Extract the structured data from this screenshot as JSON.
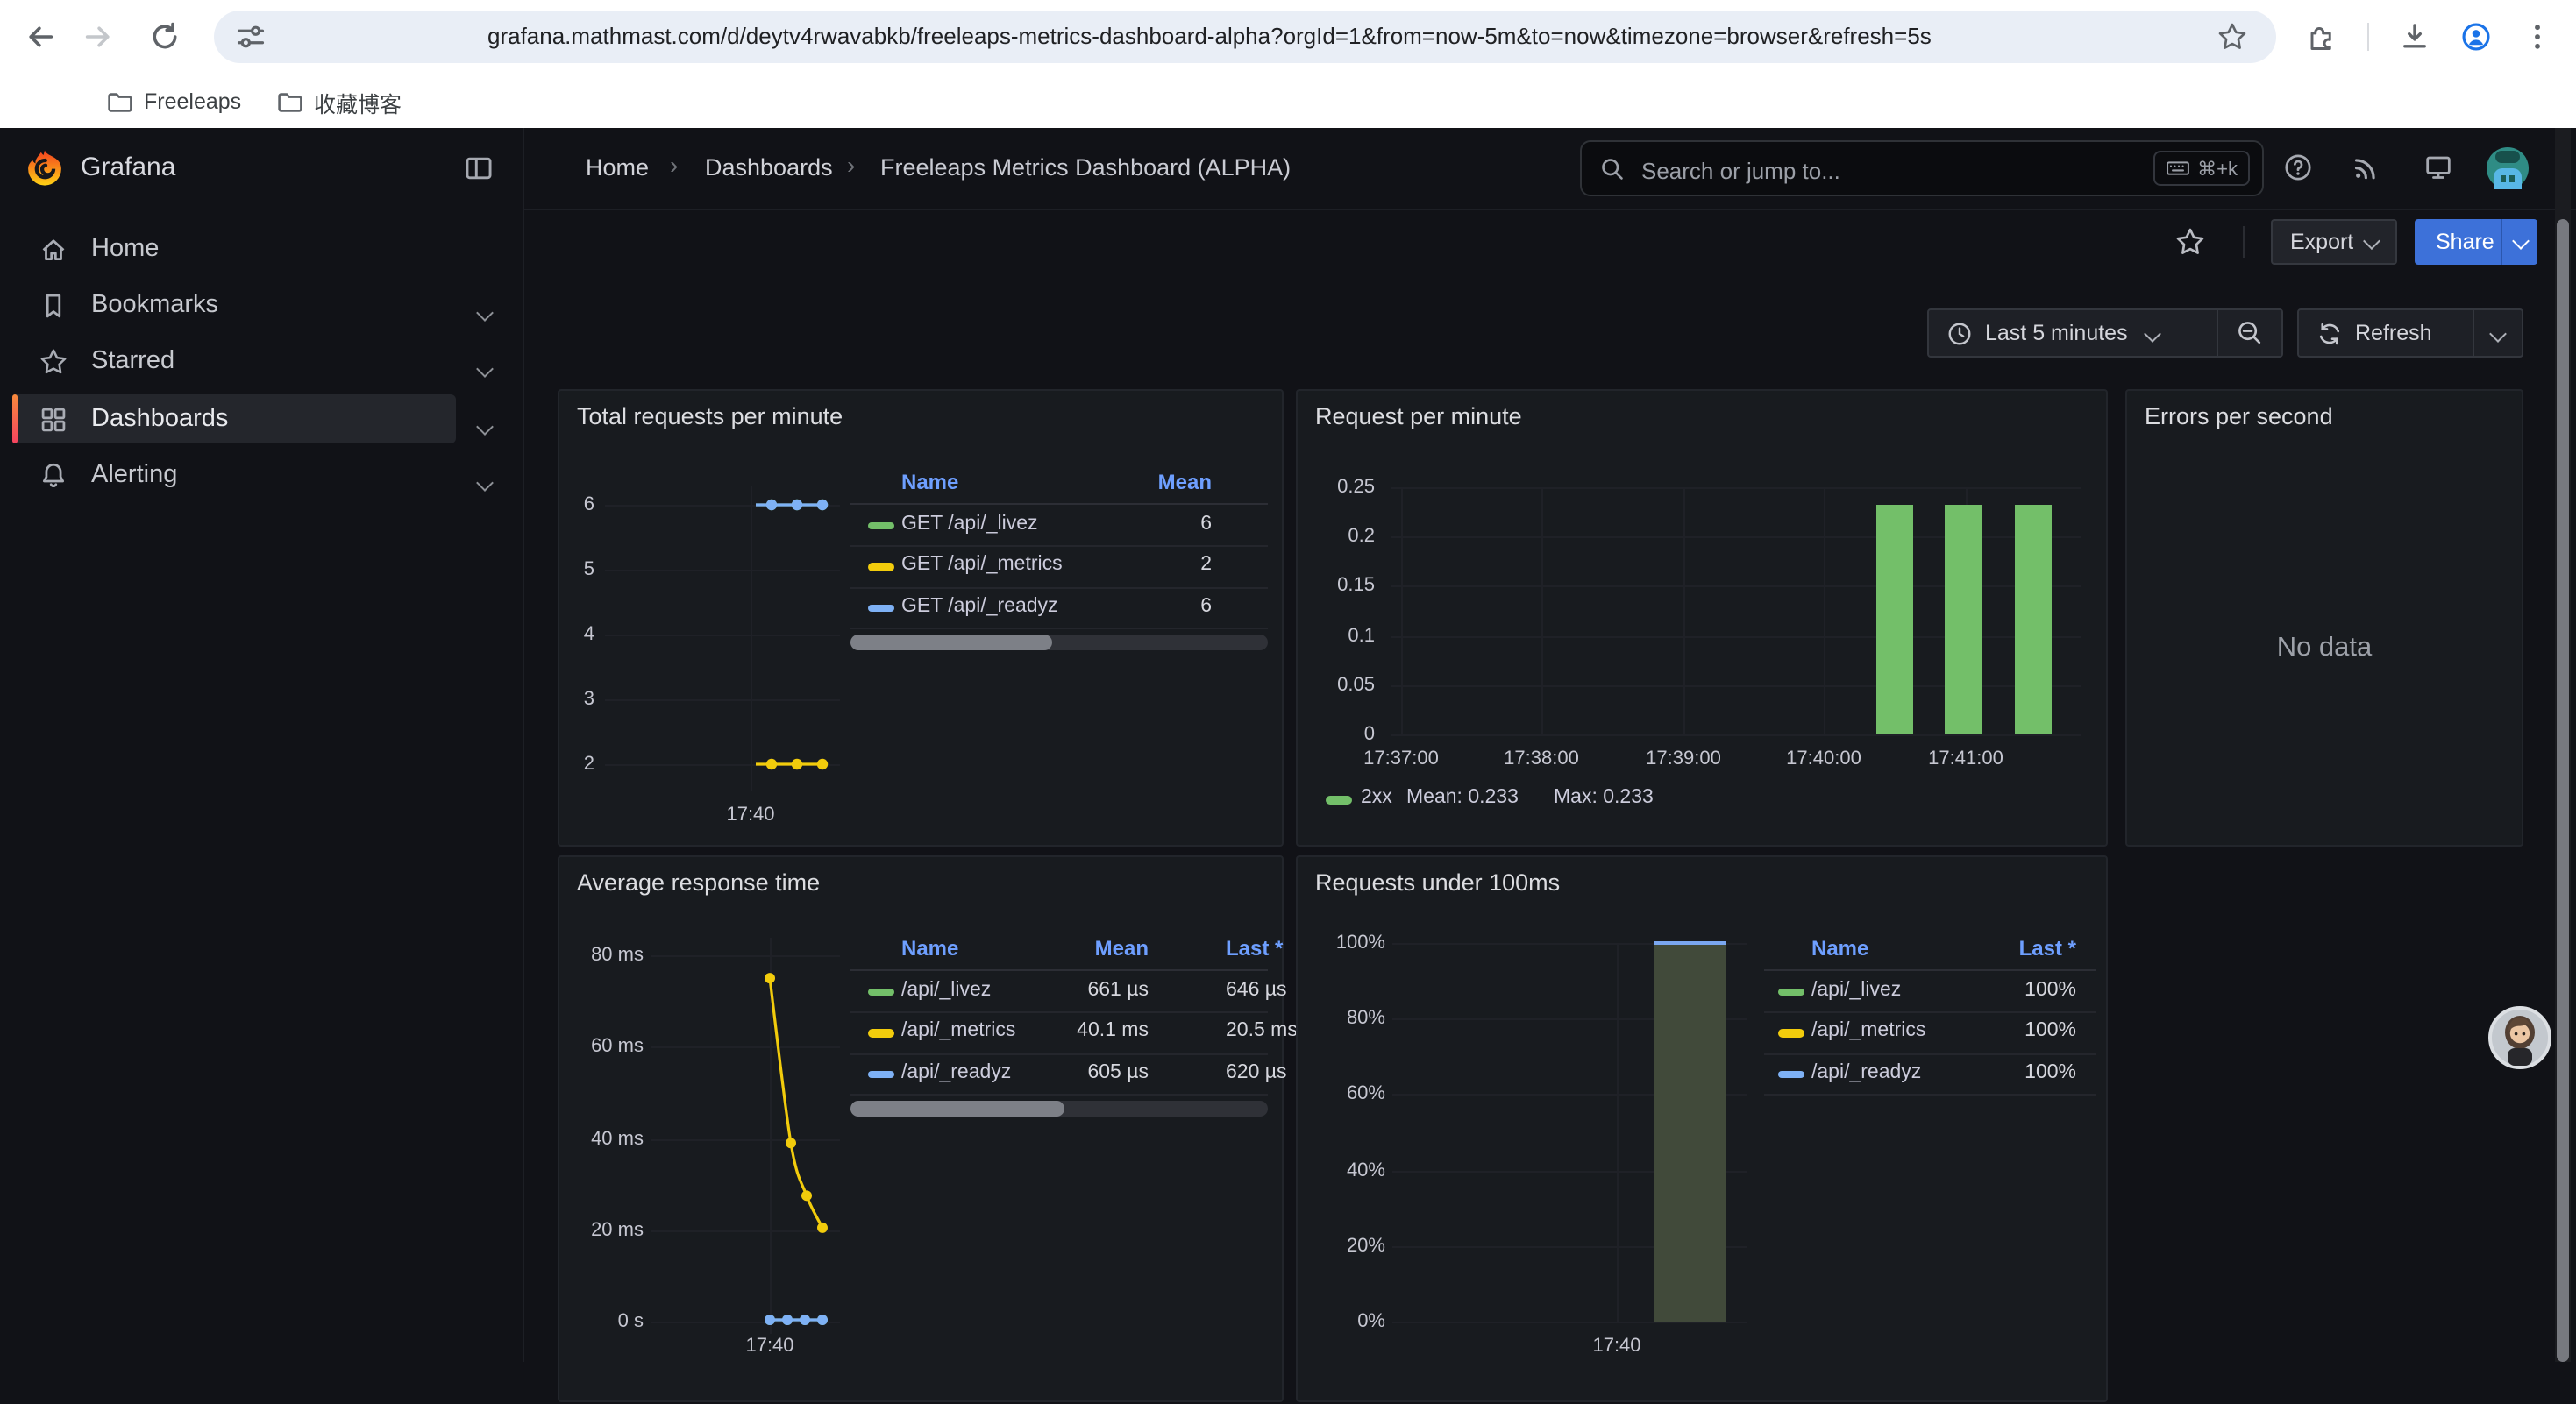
{
  "browser": {
    "url": "grafana.mathmast.com/d/deytv4rwavabkb/freeleaps-metrics-dashboard-alpha?orgId=1&from=now-5m&to=now&timezone=browser&refresh=5s",
    "bookmarks": [
      "Freeleaps",
      "收藏博客"
    ]
  },
  "topnav": {
    "brand": "Grafana",
    "breadcrumb": [
      "Home",
      "Dashboards",
      "Freeleaps Metrics Dashboard (ALPHA)"
    ],
    "search": {
      "placeholder": "Search or jump to...",
      "shortcut": "⌘+k"
    }
  },
  "sidebar": {
    "items": [
      "Home",
      "Bookmarks",
      "Starred",
      "Dashboards",
      "Alerting"
    ],
    "active_item": "Dashboards"
  },
  "dashboard_toolbar": {
    "export": "Export",
    "share": "Share",
    "time_range": "Last 5 minutes",
    "refresh": "Refresh"
  },
  "colors": {
    "green": "#73BF69",
    "yellow": "#F2CC0C",
    "blue": "#7EB1F5",
    "share_blue": "#3d71d9",
    "link_blue": "#6e9fff",
    "bar_fill_olive": "#414a3a",
    "bar_top_blue": "#7aa7f0"
  },
  "chart_data": [
    {
      "panel_title": "Total requests per minute",
      "type": "line",
      "x_ticks": [
        "17:40"
      ],
      "y_ticks": [
        6,
        5,
        4,
        3,
        2
      ],
      "ylim": [
        2,
        6
      ],
      "series": [
        {
          "name": "GET /api/_livez",
          "color": "#73BF69",
          "values": [
            6,
            6,
            6
          ],
          "mean": "6"
        },
        {
          "name": "GET /api/_metrics",
          "color": "#F2CC0C",
          "values": [
            2,
            2,
            2
          ],
          "mean": "2"
        },
        {
          "name": "GET /api/_readyz",
          "color": "#7EB1F5",
          "values": [
            6,
            6,
            6
          ],
          "mean": "6"
        }
      ],
      "legend": {
        "columns": [
          "Name",
          "Mean"
        ]
      }
    },
    {
      "panel_title": "Request per minute",
      "type": "bar",
      "x_ticks": [
        "17:37:00",
        "17:38:00",
        "17:39:00",
        "17:40:00",
        "17:41:00"
      ],
      "y_ticks": [
        "0.25",
        "0.2",
        "0.15",
        "0.1",
        "0.05",
        "0"
      ],
      "ylim": [
        0,
        0.25
      ],
      "series": [
        {
          "name": "2xx",
          "color": "#73BF69",
          "values": [
            0.233,
            0.233,
            0.233
          ],
          "mean": "0.233",
          "max": "0.233"
        }
      ],
      "legend_text": {
        "name": "2xx",
        "mean": "Mean: 0.233",
        "max": "Max: 0.233"
      }
    },
    {
      "panel_title": "Errors per second",
      "type": "empty",
      "message": "No data"
    },
    {
      "panel_title": "Average response time",
      "type": "line",
      "x_ticks": [
        "17:40"
      ],
      "y_ticks": [
        "80 ms",
        "60 ms",
        "40 ms",
        "20 ms",
        "0 s"
      ],
      "ylim_ms": [
        0,
        80
      ],
      "series": [
        {
          "name": "/api/_livez",
          "color": "#73BF69",
          "values_ms": [
            0.68,
            0.66,
            0.65,
            0.646
          ],
          "mean": "661 µs",
          "last": "646 µs"
        },
        {
          "name": "/api/_metrics",
          "color": "#F2CC0C",
          "values_ms": [
            75,
            39,
            27.5,
            20.5
          ],
          "mean": "40.1 ms",
          "last": "20.5 ms"
        },
        {
          "name": "/api/_readyz",
          "color": "#7EB1F5",
          "values_ms": [
            0.61,
            0.6,
            0.6,
            0.62
          ],
          "mean": "605 µs",
          "last": "620 µs"
        }
      ],
      "legend": {
        "columns": [
          "Name",
          "Mean",
          "Last *"
        ]
      }
    },
    {
      "panel_title": "Requests under 100ms",
      "type": "bar",
      "x_ticks": [
        "17:40"
      ],
      "y_ticks": [
        "100%",
        "80%",
        "60%",
        "40%",
        "20%",
        "0%"
      ],
      "ylim_pct": [
        0,
        100
      ],
      "bar": {
        "value_pct": 100,
        "fill": "#414a3a",
        "top_color": "#7aa7f0"
      },
      "series": [
        {
          "name": "/api/_livez",
          "color": "#73BF69",
          "last": "100%"
        },
        {
          "name": "/api/_metrics",
          "color": "#F2CC0C",
          "last": "100%"
        },
        {
          "name": "/api/_readyz",
          "color": "#7EB1F5",
          "last": "100%"
        }
      ],
      "legend": {
        "columns": [
          "Name",
          "Last *"
        ]
      }
    }
  ]
}
